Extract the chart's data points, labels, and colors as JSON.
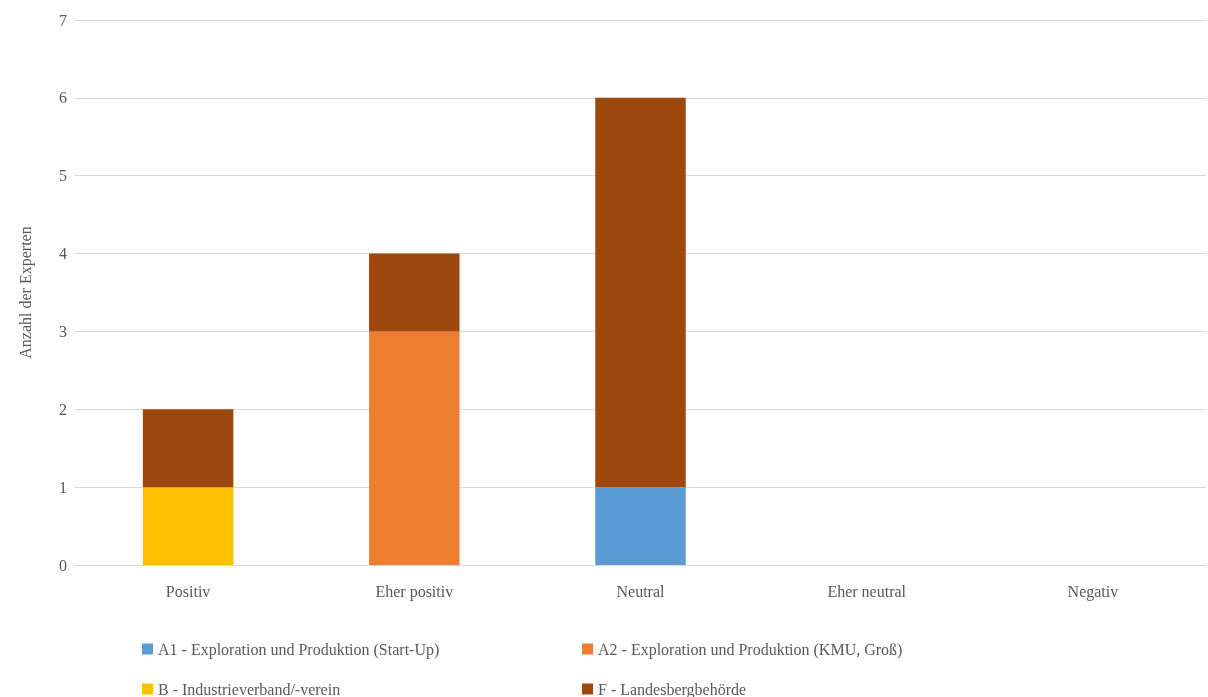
{
  "chart_data": {
    "type": "bar",
    "stacked": true,
    "ylabel": "Anzahl der Experten",
    "categories": [
      "Positiv",
      "Eher positiv",
      "Neutral",
      "Eher neutral",
      "Negativ"
    ],
    "series": [
      {
        "name": "A1 - Exploration und Produktion (Start-Up)",
        "color": "#5b9bd5",
        "values": [
          0,
          0,
          1,
          0,
          0
        ]
      },
      {
        "name": "A2 - Exploration und Produktion (KMU, Groß)",
        "color": "#ed7d31",
        "values": [
          0,
          3,
          0,
          0,
          0
        ]
      },
      {
        "name": "B - Industrieverband/-verein",
        "color": "#ffc000",
        "values": [
          1,
          0,
          0,
          0,
          0
        ]
      },
      {
        "name": "F - Landesbergbehörde",
        "color": "#9e480e",
        "values": [
          1,
          1,
          5,
          0,
          0
        ]
      }
    ],
    "ylim": [
      0,
      7
    ],
    "yticks": [
      0,
      1,
      2,
      3,
      4,
      5,
      6,
      7
    ],
    "grid": "y",
    "legend": "bottom"
  }
}
